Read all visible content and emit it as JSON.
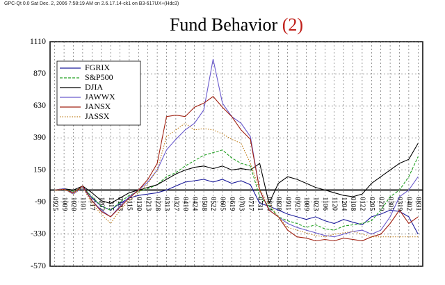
{
  "header": "GPC-Qt 0.0 Sat Dec. 2, 2006  7:58:19 AM on 2.6.17.14-ck1 on B3-617UX+(Hdc3)",
  "chart_data": {
    "type": "line",
    "title": "Fund Behavior",
    "title_number": "(2)",
    "title_number_color": "#c0201a",
    "categories": [
      "0925",
      "1009",
      "1020",
      "1101",
      "1117",
      "1202",
      "1215",
      "0103",
      "0115",
      "0130",
      "0213",
      "0228",
      "0313",
      "0327",
      "0410",
      "0424",
      "0508",
      "0522",
      "0605",
      "0619",
      "0703",
      "0717",
      "0731",
      "0814",
      "0828",
      "0911",
      "0925",
      "1009",
      "1023",
      "1106",
      "1120",
      "1204",
      "0108",
      "0122",
      "0205",
      "0219",
      "0305",
      "0319",
      "0402",
      "0831"
    ],
    "series": [
      {
        "name": "FGRIX",
        "color": "#1a1a9a",
        "style": "solid",
        "values": [
          0,
          10,
          -20,
          30,
          -60,
          -120,
          -150,
          -100,
          -60,
          -40,
          -30,
          -20,
          0,
          30,
          60,
          70,
          80,
          60,
          80,
          50,
          70,
          40,
          -100,
          -120,
          -150,
          -180,
          -200,
          -220,
          -200,
          -230,
          -250,
          -220,
          -240,
          -260,
          -200,
          -180,
          -150,
          -160,
          -200,
          -330
        ]
      },
      {
        "name": "S&P500",
        "color": "#22a022",
        "style": "dashed",
        "values": [
          0,
          10,
          -10,
          20,
          -50,
          -120,
          -150,
          -90,
          -40,
          -10,
          10,
          40,
          100,
          130,
          180,
          220,
          260,
          280,
          300,
          240,
          200,
          180,
          -50,
          -120,
          -200,
          -230,
          -250,
          -280,
          -260,
          -290,
          -300,
          -270,
          -260,
          -250,
          -230,
          -150,
          -50,
          0,
          100,
          250
        ]
      },
      {
        "name": "DJIA",
        "color": "#000000",
        "style": "solid",
        "values": [
          0,
          10,
          0,
          30,
          -20,
          -80,
          -100,
          -60,
          -20,
          0,
          20,
          40,
          80,
          120,
          150,
          170,
          180,
          160,
          180,
          150,
          160,
          150,
          200,
          -100,
          50,
          100,
          80,
          50,
          20,
          0,
          -20,
          -40,
          -50,
          -30,
          50,
          100,
          150,
          200,
          230,
          350
        ]
      },
      {
        "name": "JAWWX",
        "color": "#6a5acd",
        "style": "solid",
        "values": [
          0,
          10,
          -30,
          20,
          -80,
          -150,
          -200,
          -120,
          -50,
          0,
          60,
          150,
          300,
          380,
          450,
          500,
          600,
          980,
          650,
          550,
          500,
          400,
          0,
          -150,
          -200,
          -250,
          -280,
          -300,
          -320,
          -340,
          -350,
          -330,
          -310,
          -300,
          -330,
          -300,
          -200,
          -50,
          0,
          100
        ]
      },
      {
        "name": "JANSX",
        "color": "#a02010",
        "style": "solid",
        "values": [
          0,
          5,
          -20,
          30,
          -80,
          -160,
          -200,
          -130,
          -60,
          0,
          80,
          200,
          550,
          560,
          550,
          620,
          650,
          700,
          620,
          550,
          450,
          380,
          0,
          -150,
          -200,
          -300,
          -350,
          -360,
          -380,
          -370,
          -380,
          -360,
          -370,
          -380,
          -350,
          -330,
          -250,
          -150,
          -250,
          -200
        ]
      },
      {
        "name": "JASSX",
        "color": "#c08020",
        "style": "dotted",
        "values": [
          0,
          5,
          -30,
          20,
          -100,
          -180,
          -250,
          -150,
          -80,
          -20,
          50,
          150,
          400,
          450,
          500,
          450,
          460,
          450,
          420,
          380,
          350,
          200,
          0,
          -100,
          -200,
          -280,
          -300,
          -320,
          -340,
          -350,
          -330,
          -320,
          -310,
          -330,
          -350,
          -350,
          -350,
          -350,
          -350,
          -350
        ]
      }
    ],
    "ylim": [
      -570,
      1110
    ],
    "yticks": [
      -570,
      -330,
      -90,
      150,
      390,
      630,
      870,
      1110
    ],
    "grid": true,
    "zero_line": true,
    "legend": "upper-left"
  }
}
